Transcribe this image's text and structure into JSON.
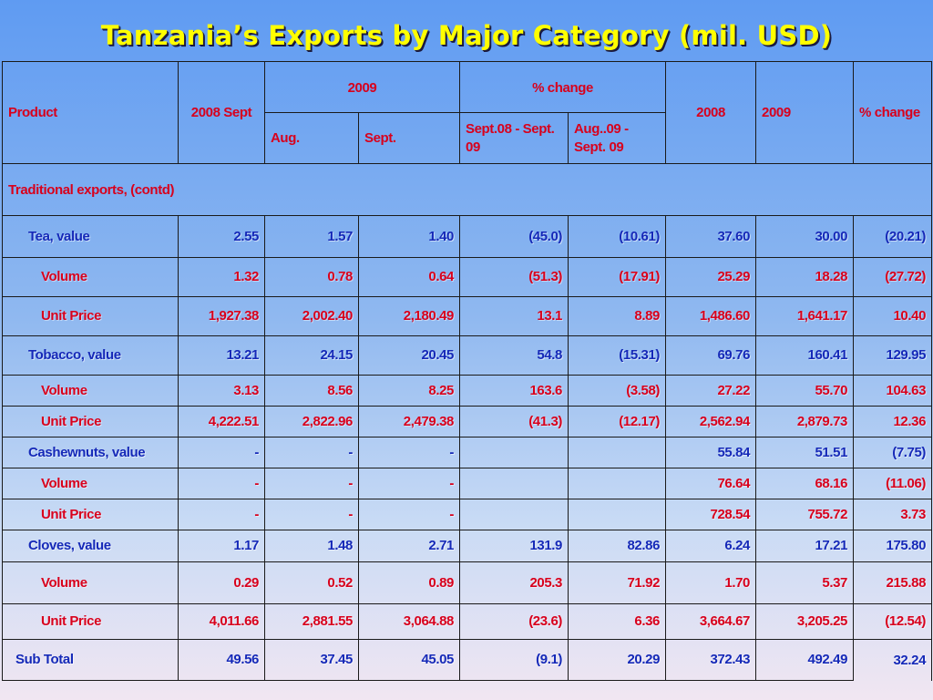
{
  "title": "Tanzania’s Exports by Major Category (mil. USD)",
  "headers": {
    "product": "Product",
    "sept_2008": "2008 Sept",
    "year_2009": "2009",
    "pct_change": "% change",
    "aug": "Aug.",
    "sept": "Sept.",
    "change_sept": "Sept.08 - Sept. 09",
    "change_aug": "Aug..09 - Sept. 09",
    "year_2008_total": "2008",
    "year_2009_total": "2009",
    "pct_change_total": "% change"
  },
  "section": "Traditional exports, (contd)",
  "rows": [
    {
      "label": "Tea, value",
      "type": "value",
      "cells": [
        "2.55",
        "1.57",
        "1.40",
        "(45.0)",
        "(10.61)",
        "37.60",
        "30.00",
        "(20.21)"
      ]
    },
    {
      "label": "Volume",
      "type": "sub",
      "cells": [
        "1.32",
        "0.78",
        "0.64",
        "(51.3)",
        "(17.91)",
        "25.29",
        "18.28",
        "(27.72)"
      ]
    },
    {
      "label": "Unit Price",
      "type": "sub",
      "cells": [
        "1,927.38",
        "2,002.40",
        "2,180.49",
        "13.1",
        "8.89",
        "1,486.60",
        "1,641.17",
        "10.40"
      ]
    },
    {
      "label": "Tobacco, value",
      "type": "value",
      "cells": [
        "13.21",
        "24.15",
        "20.45",
        "54.8",
        "(15.31)",
        "69.76",
        "160.41",
        "129.95"
      ]
    },
    {
      "label": "Volume",
      "type": "sub",
      "cells": [
        "3.13",
        "8.56",
        "8.25",
        "163.6",
        "(3.58)",
        "27.22",
        "55.70",
        "104.63"
      ]
    },
    {
      "label": "Unit Price",
      "type": "sub",
      "cells": [
        "4,222.51",
        "2,822.96",
        "2,479.38",
        "(41.3)",
        "(12.17)",
        "2,562.94",
        "2,879.73",
        "12.36"
      ]
    },
    {
      "label": "Cashewnuts, value",
      "type": "value",
      "cells": [
        "-",
        "-",
        "-",
        "",
        "",
        "55.84",
        "51.51",
        "(7.75)"
      ]
    },
    {
      "label": "Volume",
      "type": "sub",
      "cells": [
        "-",
        "-",
        "-",
        "",
        "",
        "76.64",
        "68.16",
        "(11.06)"
      ]
    },
    {
      "label": "Unit Price",
      "type": "sub",
      "cells": [
        "-",
        "-",
        "-",
        "",
        "",
        "728.54",
        "755.72",
        "3.73"
      ]
    },
    {
      "label": "Cloves, value",
      "type": "value",
      "cells": [
        "1.17",
        "1.48",
        "2.71",
        "131.9",
        "82.86",
        "6.24",
        "17.21",
        "175.80"
      ]
    },
    {
      "label": "Volume",
      "type": "sub",
      "cells": [
        "0.29",
        "0.52",
        "0.89",
        "205.3",
        "71.92",
        "1.70",
        "5.37",
        "215.88"
      ]
    },
    {
      "label": "Unit Price",
      "type": "sub",
      "cells": [
        "4,011.66",
        "2,881.55",
        "3,064.88",
        "(23.6)",
        "6.36",
        "3,664.67",
        "3,205.25",
        "(12.54)"
      ]
    },
    {
      "label": "Sub Total",
      "type": "total",
      "cells": [
        "49.56",
        "37.45",
        "45.05",
        "(9.1)",
        "20.29",
        "372.43",
        "492.49",
        "32.24"
      ]
    }
  ]
}
